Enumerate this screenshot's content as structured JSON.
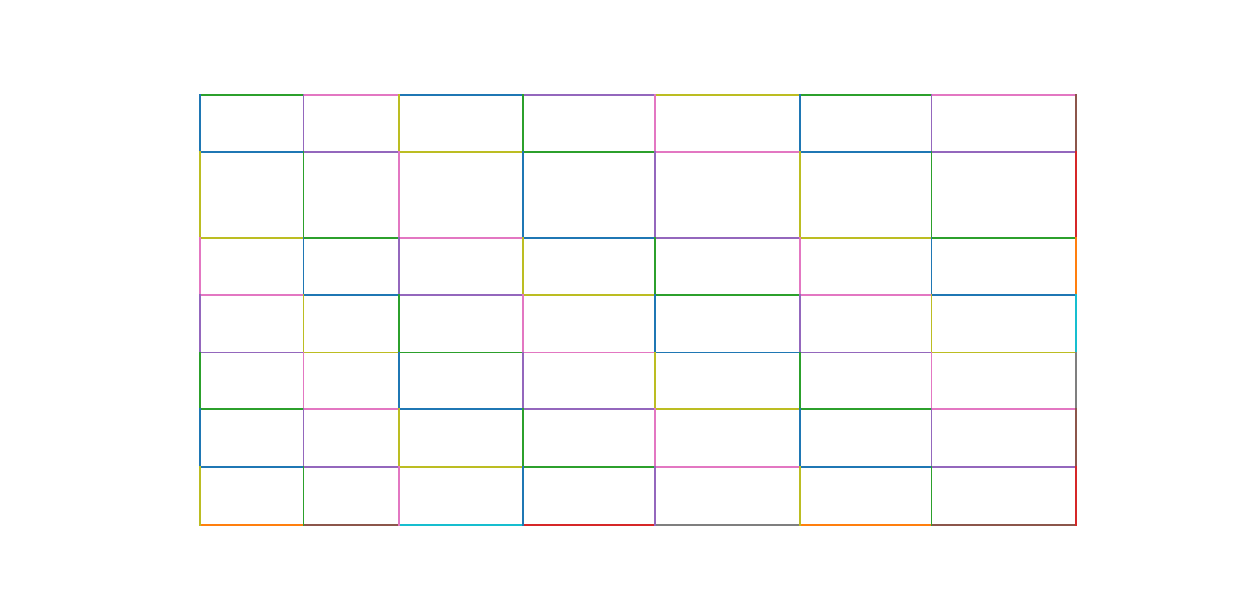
{
  "chart_data": {
    "type": "line",
    "title": "",
    "xlabel": "",
    "ylabel": "",
    "axes_visible": false,
    "grid": false,
    "palette": {
      "blue": "#1f77b4",
      "orange": "#ff7f0e",
      "green": "#2ca02c",
      "red": "#d62728",
      "purple": "#9467bd",
      "brown": "#8c564b",
      "pink": "#e377c2",
      "gray": "#7f7f7f",
      "olive": "#bcbd22",
      "cyan": "#17becf"
    },
    "horizontal_segment_colors": [
      [
        "green",
        "pink",
        "blue",
        "purple",
        "olive",
        "green",
        "pink"
      ],
      [
        "blue",
        "purple",
        "olive",
        "green",
        "pink",
        "blue",
        "purple"
      ],
      [
        "olive",
        "green",
        "pink",
        "blue",
        "purple",
        "olive",
        "green"
      ],
      [
        "pink",
        "blue",
        "purple",
        "olive",
        "green",
        "pink",
        "blue"
      ],
      [
        "purple",
        "olive",
        "green",
        "pink",
        "blue",
        "purple",
        "olive"
      ],
      [
        "green",
        "pink",
        "blue",
        "purple",
        "olive",
        "green",
        "pink"
      ],
      [
        "blue",
        "purple",
        "olive",
        "green",
        "pink",
        "blue",
        "purple"
      ],
      [
        "orange",
        "brown",
        "cyan",
        "red",
        "gray",
        "orange",
        "brown"
      ]
    ],
    "vertical_segment_colors": [
      [
        "blue",
        "olive",
        "pink",
        "purple",
        "green",
        "blue",
        "olive"
      ],
      [
        "purple",
        "green",
        "blue",
        "olive",
        "pink",
        "purple",
        "green"
      ],
      [
        "olive",
        "pink",
        "purple",
        "green",
        "blue",
        "olive",
        "pink"
      ],
      [
        "green",
        "blue",
        "olive",
        "pink",
        "purple",
        "green",
        "blue"
      ],
      [
        "pink",
        "purple",
        "green",
        "blue",
        "olive",
        "pink",
        "purple"
      ],
      [
        "blue",
        "olive",
        "pink",
        "purple",
        "green",
        "blue",
        "olive"
      ],
      [
        "purple",
        "green",
        "blue",
        "olive",
        "pink",
        "purple",
        "green"
      ],
      [
        "brown",
        "red",
        "orange",
        "cyan",
        "gray",
        "brown",
        "red"
      ]
    ]
  }
}
